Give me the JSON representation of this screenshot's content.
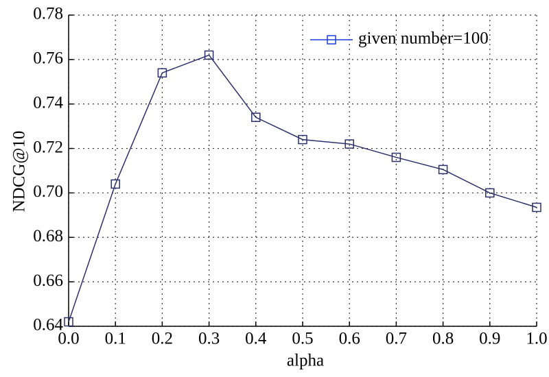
{
  "chart_data": {
    "type": "line",
    "x": [
      0.0,
      0.1,
      0.2,
      0.3,
      0.4,
      0.5,
      0.6,
      0.7,
      0.8,
      0.9,
      1.0
    ],
    "series": [
      {
        "name": "given number=100",
        "color": "#2b2f6b",
        "values": [
          0.642,
          0.704,
          0.754,
          0.762,
          0.734,
          0.724,
          0.722,
          0.716,
          0.7105,
          0.7,
          0.6935
        ]
      }
    ],
    "xlabel": "alpha",
    "ylabel": "NDCG@10",
    "xlim": [
      0,
      1.0
    ],
    "ylim": [
      0.64,
      0.78
    ],
    "xticks": [
      {
        "value": 0,
        "label": "0.0"
      },
      0.1,
      0.2,
      0.3,
      0.4,
      0.5,
      0.6,
      0.7,
      0.8,
      0.9,
      {
        "value": 1,
        "label": "1.0"
      }
    ],
    "yticks": [
      0.64,
      0.66,
      0.68,
      {
        "value": 0.7,
        "label": "0.70"
      },
      0.72,
      0.74,
      0.76,
      0.78
    ],
    "grid": true,
    "legend": "upper right"
  }
}
